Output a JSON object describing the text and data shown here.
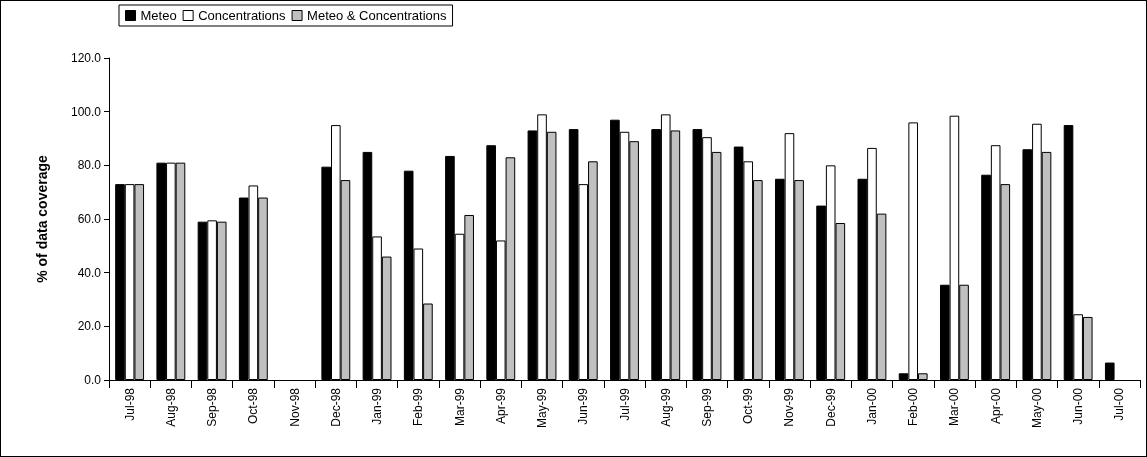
{
  "chart_data": {
    "type": "bar",
    "ylabel": "% of data coverage",
    "categories": [
      "Jul-98",
      "Aug-98",
      "Sep-98",
      "Oct-98",
      "Nov-98",
      "Dec-98",
      "Jan-99",
      "Feb-99",
      "Mar-99",
      "Apr-99",
      "May-99",
      "Jun-99",
      "Jul-99",
      "Aug-99",
      "Sep-99",
      "Oct-99",
      "Nov-99",
      "Dec-99",
      "Jan-00",
      "Feb-00",
      "Mar-00",
      "Apr-00",
      "May-00",
      "Jun-00",
      "Jul-00"
    ],
    "series": [
      {
        "name": "Meteo",
        "color": "#000000",
        "values": [
          73,
          81,
          59,
          68,
          null,
          79.5,
          85,
          78,
          83.5,
          87.5,
          93,
          93.5,
          97,
          93.5,
          93.5,
          87,
          75,
          65,
          75,
          2.5,
          35.5,
          76.5,
          86,
          95,
          6.5
        ]
      },
      {
        "name": "Concentrations",
        "color": "#ffffff",
        "values": [
          73,
          81,
          59.5,
          72.5,
          null,
          95,
          53.5,
          49,
          54.5,
          52,
          99,
          73,
          92.5,
          99,
          90.5,
          81.5,
          92,
          80,
          86.5,
          96,
          98.5,
          87.5,
          95.5,
          24.5,
          null
        ]
      },
      {
        "name": "Meteo & Concentrations",
        "color": "#c0c0c0",
        "values": [
          73,
          81,
          59,
          68,
          null,
          74.5,
          46,
          28.5,
          61.5,
          83,
          92.5,
          81.5,
          89,
          93,
          85,
          74.5,
          74.5,
          58.5,
          62,
          2.5,
          35.5,
          73,
          85,
          23.5,
          null
        ]
      }
    ],
    "ylim": [
      0,
      120
    ],
    "yticks": [
      {
        "value": 0,
        "label": "0.0"
      },
      {
        "value": 20,
        "label": "20.0"
      },
      {
        "value": 40,
        "label": "40.0"
      },
      {
        "value": 60,
        "label": "60.0"
      },
      {
        "value": 80,
        "label": "80.0"
      },
      {
        "value": 100,
        "label": "100.0"
      },
      {
        "value": 120,
        "label": "120.0"
      }
    ],
    "grid": false,
    "legend": "top left"
  }
}
